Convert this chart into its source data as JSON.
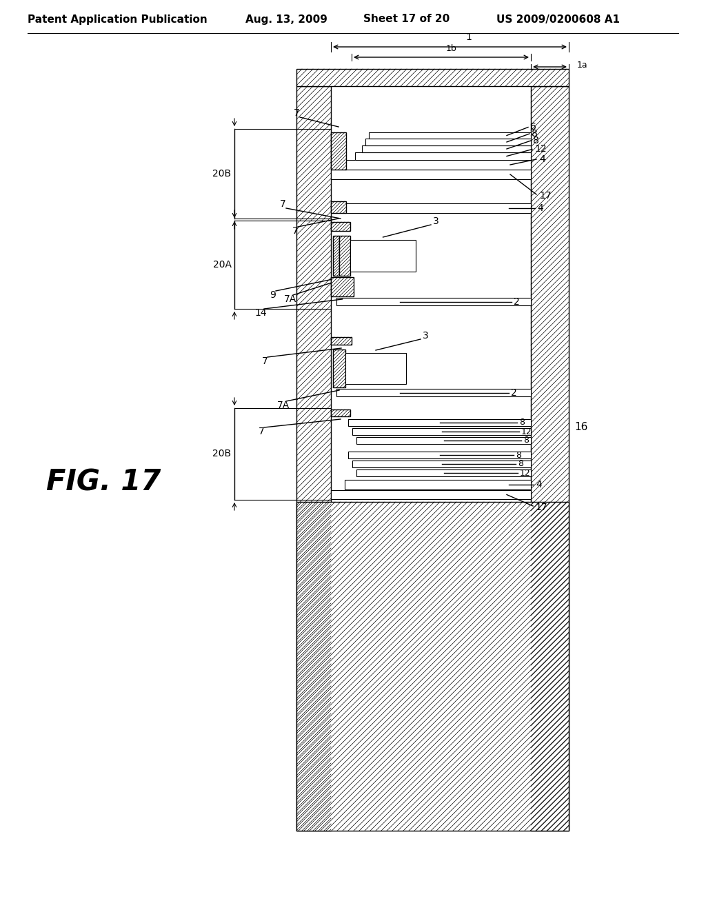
{
  "title_header": "Patent Application Publication",
  "date": "Aug. 13, 2009",
  "sheet": "Sheet 17 of 20",
  "patent_num": "US 2009/0200608 A1",
  "fig_label": "FIG. 17",
  "bg_color": "#ffffff",
  "line_color": "#000000",
  "labels": {
    "1": "1",
    "1a": "1a",
    "1b": "1b",
    "2": "2",
    "3": "3",
    "4": "4",
    "6": "6",
    "7": "7",
    "7A": "7A",
    "8": "8",
    "9": "9",
    "12": "12",
    "14": "14",
    "16": "16",
    "17": "17",
    "20A": "20A",
    "20B": "20B"
  }
}
